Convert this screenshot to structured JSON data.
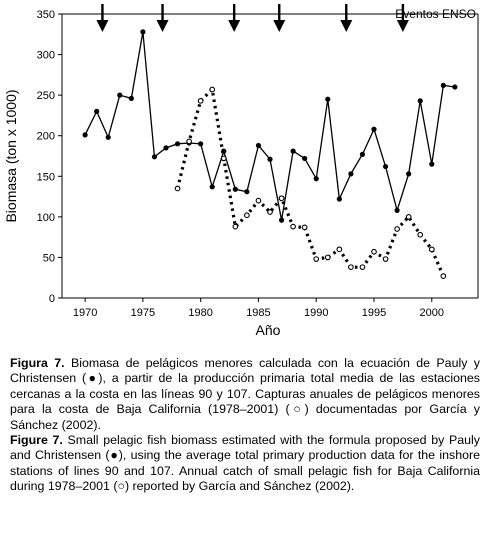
{
  "chart_data": {
    "type": "line",
    "xlabel": "Año",
    "ylabel": "Biomasa (ton x 1000)",
    "xlim": [
      1968,
      2004
    ],
    "ylim": [
      0,
      350
    ],
    "xticks": [
      1970,
      1975,
      1980,
      1985,
      1990,
      1995,
      2000
    ],
    "yticks": [
      0,
      50,
      100,
      150,
      200,
      250,
      300,
      350
    ],
    "grid": false,
    "events_label": "Eventos ENSO",
    "enso_event_years": [
      1971.5,
      1976.7,
      1982.9,
      1986.8,
      1992.6,
      1997.5
    ],
    "series": [
      {
        "marker": "filled-circle",
        "line": "solid",
        "color": "#000000",
        "x": [
          1970,
          1971,
          1972,
          1973,
          1974,
          1975,
          1976,
          1977,
          1978,
          1979,
          1980,
          1981,
          1982,
          1983,
          1984,
          1985,
          1986,
          1987,
          1988,
          1989,
          1990,
          1991,
          1992,
          1993,
          1994,
          1995,
          1996,
          1997,
          1998,
          1999,
          2000,
          2001,
          2002
        ],
        "y": [
          201,
          230,
          198,
          250,
          246,
          328,
          174,
          185,
          190,
          191,
          190,
          137,
          181,
          134,
          131,
          188,
          171,
          96,
          181,
          172,
          147,
          245,
          122,
          153,
          177,
          208,
          162,
          108,
          153,
          243,
          165,
          262,
          260
        ]
      },
      {
        "marker": "open-circle",
        "line": "dotted",
        "color": "#000000",
        "x": [
          1978,
          1979,
          1980,
          1981,
          1982,
          1983,
          1984,
          1985,
          1986,
          1987,
          1988,
          1989,
          1990,
          1991,
          1992,
          1993,
          1994,
          1995,
          1996,
          1997,
          1998,
          1999,
          2000,
          2001
        ],
        "y": [
          135,
          193,
          243,
          257,
          172,
          88,
          102,
          120,
          106,
          123,
          88,
          87,
          48,
          50,
          60,
          38,
          38,
          57,
          48,
          85,
          100,
          78,
          60,
          27
        ]
      }
    ]
  },
  "caption": {
    "es_label": "Figura 7.",
    "es_text": " Biomasa de pelágicos menores calculada con la ecuación de Pauly y Christensen (●), a partir de la producción primaria total media de las estaciones cercanas a la costa en las líneas 90 y 107. Capturas anuales de pelágicos menores para la costa de Baja California (1978–2001) (○) documentadas por García y Sánchez (2002).",
    "en_label": "Figure 7.",
    "en_text": " Small pelagic fish biomass estimated with the formula proposed by Pauly and Christensen (●), using the average total primary production data for the inshore stations of lines 90 and 107. Annual catch of small pelagic fish for Baja California during 1978–2001 (○) reported by García and Sánchez (2002)."
  }
}
